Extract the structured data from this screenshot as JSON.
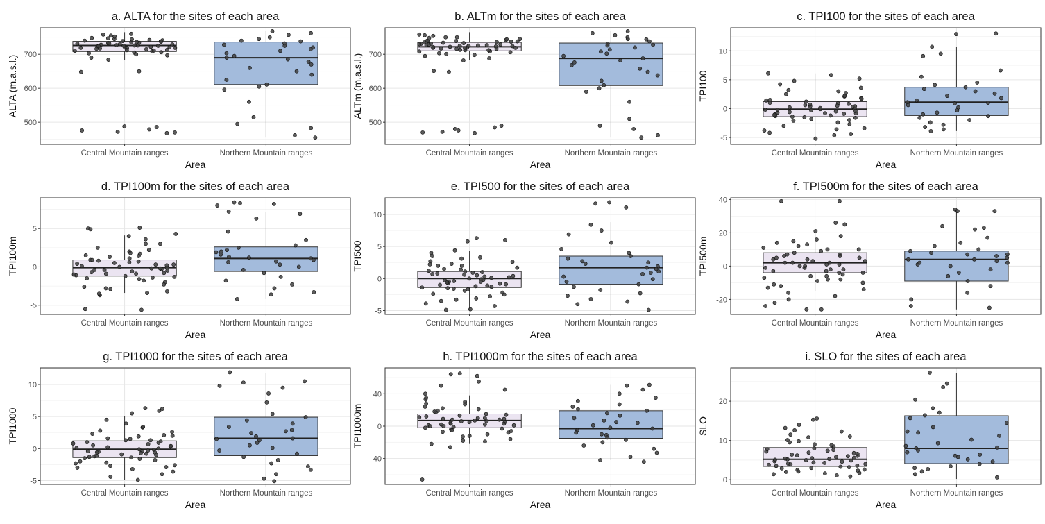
{
  "colors": {
    "central_fill": "#ebe4f1",
    "northern_fill": "#a3bbdc",
    "point": "#3f3f3f",
    "box_stroke": "#333333",
    "panel_border": "#333333",
    "grid_major": "#e6e6e6",
    "grid_minor": "#f2f2f2"
  },
  "chart_data": [
    {
      "type": "box",
      "title": "a. ALTA for the sites of each area",
      "xlabel": "Area",
      "ylabel": "ALTA (m.a.s.l.)",
      "categories": [
        "Central Mountain ranges",
        "Northern Mountain ranges"
      ],
      "yticks": [
        500,
        600,
        700
      ],
      "ylim": [
        435,
        778
      ],
      "boxes": [
        {
          "whisker_low": 683,
          "q1": 708,
          "median": 726,
          "q3": 738,
          "whisker_high": 765
        },
        {
          "whisker_low": 455,
          "q1": 611,
          "median": 690,
          "q3": 736,
          "whisker_high": 768
        }
      ],
      "points": [
        [
          748,
          742,
          735,
          730,
          728,
          725,
          722,
          720,
          718,
          712,
          710,
          705,
          700,
          745,
          738,
          733,
          727,
          723,
          719,
          715,
          741,
          737,
          731,
          726,
          721,
          716,
          709,
          703,
          697,
          690,
          684,
          760,
          755,
          752,
          744,
          740,
          734,
          729,
          724,
          717,
          711,
          706,
          650,
          648,
          488,
          486,
          479,
          476,
          472,
          470,
          468,
          739,
          732,
          725,
          719,
          713,
          758,
          747,
          736,
          726
        ],
        [
          768,
          762,
          757,
          750,
          745,
          738,
          732,
          728,
          720,
          715,
          710,
          703,
          695,
          690,
          685,
          678,
          670,
          660,
          650,
          640,
          625,
          611,
          605,
          596,
          560,
          515,
          495,
          483,
          462,
          455,
          740,
          725
        ]
      ]
    },
    {
      "type": "box",
      "title": "b. ALTm for the sites of each area",
      "xlabel": "Area",
      "ylabel": "ALTm (m.a.s.l.)",
      "categories": [
        "Central Mountain ranges",
        "Northern Mountain ranges"
      ],
      "yticks": [
        500,
        600,
        700
      ],
      "ylim": [
        435,
        778
      ],
      "boxes": [
        {
          "whisker_low": 683,
          "q1": 710,
          "median": 722,
          "q3": 735,
          "whisker_high": 765
        },
        {
          "whisker_low": 455,
          "q1": 608,
          "median": 688,
          "q3": 733,
          "whisker_high": 768
        }
      ],
      "points": [
        [
          750,
          745,
          738,
          733,
          729,
          725,
          722,
          719,
          716,
          712,
          708,
          703,
          698,
          742,
          736,
          731,
          727,
          723,
          720,
          717,
          740,
          735,
          730,
          726,
          721,
          716,
          709,
          701,
          695,
          688,
          682,
          758,
          754,
          750,
          744,
          739,
          734,
          729,
          724,
          718,
          712,
          706,
          651,
          648,
          490,
          485,
          480,
          476,
          472,
          470,
          468,
          738,
          731,
          725,
          719,
          713,
          756,
          748,
          737,
          727
        ],
        [
          768,
          762,
          756,
          750,
          744,
          738,
          731,
          726,
          720,
          714,
          708,
          702,
          695,
          688,
          682,
          676,
          668,
          658,
          648,
          638,
          622,
          609,
          600,
          590,
          560,
          510,
          490,
          480,
          462,
          455,
          745,
          728
        ]
      ]
    },
    {
      "type": "box",
      "title": "c. TPI100 for the sites of each area",
      "xlabel": "Area",
      "ylabel": "TPI100",
      "categories": [
        "Central Mountain ranges",
        "Northern Mountain ranges"
      ],
      "yticks": [
        -5,
        0,
        5,
        10
      ],
      "ylim": [
        -6.2,
        14
      ],
      "boxes": [
        {
          "whisker_low": -5.2,
          "q1": -1.4,
          "median": -0.1,
          "q3": 1.2,
          "whisker_high": 6.1
        },
        {
          "whisker_low": -3.9,
          "q1": -1.2,
          "median": 1.1,
          "q3": 3.7,
          "whisker_high": 10.7
        }
      ],
      "points": [
        [
          6.1,
          5.8,
          4.8,
          4.2,
          3.6,
          3.0,
          2.5,
          2.1,
          1.8,
          1.5,
          1.2,
          1.0,
          0.8,
          0.6,
          0.4,
          0.2,
          0.0,
          -0.1,
          -0.2,
          -0.3,
          -0.5,
          -0.7,
          -0.8,
          -1.0,
          -1.2,
          -1.4,
          -1.6,
          -1.8,
          -2.1,
          -2.4,
          -2.7,
          -3.0,
          -3.4,
          -3.8,
          -4.2,
          -4.6,
          -5.2,
          1.4,
          0.9,
          0.3,
          -0.4,
          -0.9,
          -1.3,
          2.7,
          -2.0,
          0.5,
          -0.6,
          1.7,
          -1.5,
          0.1,
          -0.8,
          3.2,
          -3.6,
          0.7,
          -0.2,
          5.2,
          -4.4,
          2.2,
          -1.1,
          0.4
        ],
        [
          13.0,
          12.9,
          10.7,
          9.5,
          9.1,
          6.6,
          5.5,
          4.1,
          3.7,
          3.4,
          3.0,
          2.6,
          2.2,
          1.8,
          1.4,
          1.1,
          0.9,
          0.6,
          0.2,
          -0.3,
          -0.7,
          -1.0,
          -1.3,
          -1.6,
          -2.0,
          -2.4,
          -2.8,
          -3.2,
          -3.6,
          -3.9,
          1.0,
          4.5
        ]
      ]
    },
    {
      "type": "box",
      "title": "d. TPI100m for the sites of each area",
      "xlabel": "Area",
      "ylabel": "TPI100m",
      "categories": [
        "Central Mountain ranges",
        "Northern Mountain ranges"
      ],
      "yticks": [
        -5,
        0,
        5
      ],
      "ylim": [
        -6.2,
        9.0
      ],
      "boxes": [
        {
          "whisker_low": -3.4,
          "q1": -1.2,
          "median": -0.1,
          "q3": 0.9,
          "whisker_high": 4.1
        },
        {
          "whisker_low": -4.2,
          "q1": -0.6,
          "median": 1.1,
          "q3": 2.6,
          "whisker_high": 7.1
        }
      ],
      "points": [
        [
          5.1,
          5.0,
          4.9,
          4.3,
          3.6,
          3.0,
          2.5,
          2.0,
          1.7,
          1.4,
          1.1,
          0.9,
          0.7,
          0.5,
          0.3,
          0.1,
          0.0,
          -0.1,
          -0.2,
          -0.4,
          -0.5,
          -0.7,
          -0.9,
          -1.1,
          -1.2,
          -1.4,
          -1.6,
          -1.8,
          -2.0,
          -2.3,
          -2.6,
          -2.9,
          -3.2,
          -3.4,
          -3.7,
          -5.5,
          -5.6,
          1.3,
          0.6,
          0.2,
          -0.3,
          -0.8,
          2.2,
          -1.5,
          0.4,
          -0.6,
          1.8,
          -1.0,
          0.8,
          -0.2,
          3.0,
          -2.8,
          0.9,
          -0.4,
          4.0,
          -3.5,
          1.5,
          -1.3,
          0.3,
          -0.9
        ],
        [
          8.4,
          8.3,
          8.2,
          8.0,
          7.2,
          6.9,
          6.3,
          4.6,
          3.5,
          2.8,
          2.5,
          2.2,
          1.9,
          1.6,
          1.3,
          1.1,
          0.9,
          0.6,
          0.3,
          0.0,
          -0.4,
          -0.8,
          -1.3,
          -1.8,
          -2.3,
          -2.8,
          -3.3,
          -3.6,
          -4.2,
          1.2,
          2.0,
          0.7
        ]
      ]
    },
    {
      "type": "box",
      "title": "e. TPI500 for the sites of each area",
      "xlabel": "Area",
      "ylabel": "TPI500",
      "categories": [
        "Central Mountain ranges",
        "Northern Mountain ranges"
      ],
      "yticks": [
        -5,
        0,
        5,
        10
      ],
      "ylim": [
        -5.6,
        12.6
      ],
      "ytick_labels": [
        "-5",
        "0",
        "5",
        "10"
      ],
      "boxes": [
        {
          "whisker_low": -4.8,
          "q1": -1.4,
          "median": 0.0,
          "q3": 1.1,
          "whisker_high": 4.3
        },
        {
          "whisker_low": -4.9,
          "q1": -0.9,
          "median": 1.7,
          "q3": 3.5,
          "whisker_high": 8.8
        }
      ],
      "points": [
        [
          6.3,
          6.0,
          5.8,
          4.4,
          4.0,
          3.5,
          3.1,
          2.7,
          2.3,
          2.0,
          1.7,
          1.4,
          1.1,
          0.9,
          0.6,
          0.4,
          0.2,
          0.0,
          -0.1,
          -0.3,
          -0.5,
          -0.7,
          -0.9,
          -1.1,
          -1.3,
          -1.5,
          -1.7,
          -1.9,
          -2.2,
          -2.5,
          -2.8,
          -3.1,
          -3.5,
          -3.9,
          -4.3,
          -4.8,
          -4.9,
          1.2,
          0.5,
          -0.4,
          -1.0,
          2.0,
          -1.6,
          0.8,
          -0.2,
          1.5,
          -1.2,
          0.3,
          -0.6,
          2.6,
          -2.4,
          0.7,
          -0.8,
          3.3,
          -3.3,
          1.0,
          -0.5,
          0.1,
          -1.4,
          2.2
        ],
        [
          11.9,
          11.7,
          11.1,
          8.4,
          7.5,
          6.9,
          5.6,
          4.6,
          4.0,
          3.5,
          3.1,
          2.7,
          2.3,
          1.9,
          1.5,
          1.1,
          0.7,
          0.3,
          -0.1,
          -0.5,
          -0.9,
          -1.3,
          -1.8,
          -2.3,
          -2.7,
          -3.2,
          -3.6,
          -4.0,
          -4.9,
          1.7,
          2.5,
          0.9
        ]
      ]
    },
    {
      "type": "box",
      "title": "f. TPI500m for the sites of each area",
      "xlabel": "Area",
      "ylabel": "TPI500m",
      "categories": [
        "Central Mountain ranges",
        "Northern Mountain ranges"
      ],
      "yticks": [
        -20,
        0,
        20,
        40
      ],
      "ylim": [
        -29,
        41
      ],
      "boxes": [
        {
          "whisker_low": -15,
          "q1": -4,
          "median": 2,
          "q3": 8,
          "whisker_high": 21
        },
        {
          "whisker_low": -26,
          "q1": -9,
          "median": 4,
          "q3": 9,
          "whisker_high": 34
        }
      ],
      "points": [
        [
          39,
          39,
          26,
          25,
          21,
          18,
          16,
          14,
          12,
          10,
          9,
          8,
          7,
          6,
          5,
          4,
          3,
          2,
          2,
          1,
          0,
          -1,
          -2,
          -3,
          -4,
          -5,
          -6,
          -7,
          -8,
          -9,
          -10,
          -11,
          -12,
          -14,
          -16,
          -18,
          -20,
          -22,
          -24,
          -26,
          -26,
          5,
          3,
          1,
          -1,
          -3,
          10,
          -6,
          6,
          0,
          11,
          -2,
          7,
          -8,
          13,
          -13,
          4,
          -4,
          15,
          2
        ],
        [
          34,
          33,
          33,
          24,
          23,
          22,
          17,
          14,
          12,
          10,
          9,
          8,
          7,
          6,
          5,
          4,
          3,
          2,
          1,
          0,
          -2,
          -4,
          -6,
          -9,
          -12,
          -16,
          -20,
          -24,
          -25,
          4,
          7,
          2
        ]
      ]
    },
    {
      "type": "box",
      "title": "g. TPI1000 for the sites of each area",
      "xlabel": "Area",
      "ylabel": "TPI1000",
      "categories": [
        "Central Mountain ranges",
        "Northern Mountain ranges"
      ],
      "yticks": [
        -5,
        0,
        5,
        10
      ],
      "ylim": [
        -5.6,
        12.6
      ],
      "boxes": [
        {
          "whisker_low": -4.9,
          "q1": -1.4,
          "median": -0.1,
          "q3": 1.2,
          "whisker_high": 5.1
        },
        {
          "whisker_low": -4.7,
          "q1": -1.1,
          "median": 1.6,
          "q3": 4.9,
          "whisker_high": 11.8
        }
      ],
      "points": [
        [
          6.3,
          6.2,
          5.9,
          5.5,
          4.5,
          3.9,
          3.3,
          2.8,
          2.3,
          1.9,
          1.6,
          1.3,
          1.0,
          0.8,
          0.5,
          0.3,
          0.1,
          -0.1,
          -0.2,
          -0.4,
          -0.6,
          -0.8,
          -1.0,
          -1.2,
          -1.4,
          -1.6,
          -1.8,
          -2.0,
          -2.3,
          -2.6,
          -2.9,
          -3.2,
          -3.6,
          -4.0,
          -4.4,
          -4.9,
          1.1,
          0.4,
          -0.3,
          -0.9,
          2.0,
          -1.5,
          0.7,
          -0.5,
          1.5,
          -1.1,
          0.2,
          -0.7,
          2.6,
          -2.2,
          0.9,
          -0.6,
          3.4,
          -3.0,
          1.3,
          -0.4,
          0.0,
          -1.3,
          2.1,
          -2.7
        ],
        [
          11.9,
          10.5,
          10.3,
          9.8,
          9.5,
          8.6,
          7.2,
          5.4,
          4.9,
          4.4,
          3.9,
          3.4,
          2.9,
          2.4,
          1.9,
          1.6,
          1.3,
          0.9,
          0.5,
          0.1,
          -0.3,
          -0.8,
          -1.3,
          -1.8,
          -2.3,
          -2.8,
          -3.3,
          -4.0,
          -4.7,
          -5.1,
          1.5,
          2.7
        ]
      ]
    },
    {
      "type": "box",
      "title": "h. TPI1000m for the sites of each area",
      "xlabel": "Area",
      "ylabel": "TPI1000m",
      "categories": [
        "Central Mountain ranges",
        "Northern Mountain ranges"
      ],
      "yticks": [
        -40,
        0,
        40
      ],
      "ylim": [
        -72,
        72
      ],
      "boxes": [
        {
          "whisker_low": -22,
          "q1": -2,
          "median": 7,
          "q3": 15,
          "whisker_high": 38
        },
        {
          "whisker_low": -42,
          "q1": -15,
          "median": -3,
          "q3": 19,
          "whisker_high": 51
        }
      ],
      "points": [
        [
          65,
          64,
          62,
          55,
          50,
          45,
          40,
          35,
          30,
          27,
          24,
          21,
          19,
          17,
          15,
          13,
          11,
          10,
          9,
          8,
          7,
          6,
          5,
          4,
          3,
          2,
          1,
          0,
          -1,
          -2,
          -4,
          -6,
          -8,
          -10,
          -13,
          -16,
          -19,
          -22,
          -26,
          -66,
          12,
          9,
          5,
          3,
          0,
          18,
          -3,
          8,
          2,
          22,
          -5,
          14,
          -7,
          28,
          -12,
          10,
          1,
          33,
          -18,
          6
        ],
        [
          51,
          50,
          45,
          40,
          35,
          31,
          27,
          24,
          21,
          19,
          16,
          13,
          10,
          7,
          4,
          1,
          -2,
          -5,
          -8,
          -11,
          -14,
          -17,
          -20,
          -24,
          -28,
          -33,
          -38,
          -42,
          -44,
          -3,
          5,
          -10
        ]
      ]
    },
    {
      "type": "box",
      "title": "i. SLO for the sites of each area",
      "xlabel": "Area",
      "ylabel": "SLO",
      "categories": [
        "Central Mountain ranges",
        "Northern Mountain ranges"
      ],
      "yticks": [
        0,
        10,
        20
      ],
      "ylim": [
        -1.2,
        28.5
      ],
      "boxes": [
        {
          "whisker_low": 0.8,
          "q1": 3.4,
          "median": 5.2,
          "q3": 8.2,
          "whisker_high": 15.3
        },
        {
          "whisker_low": 0.2,
          "q1": 4.1,
          "median": 8.0,
          "q3": 16.3,
          "whisker_high": 27.2
        }
      ],
      "points": [
        [
          15.6,
          15.3,
          14.0,
          13.2,
          12.3,
          11.5,
          10.8,
          10.1,
          9.5,
          9.0,
          8.5,
          8.0,
          7.6,
          7.2,
          6.8,
          6.4,
          6.1,
          5.8,
          5.5,
          5.2,
          5.0,
          4.7,
          4.4,
          4.1,
          3.8,
          3.5,
          3.2,
          2.9,
          2.6,
          2.3,
          2.0,
          1.7,
          1.4,
          1.1,
          0.8,
          6.6,
          5.4,
          4.6,
          3.9,
          7.4,
          3.0,
          6.0,
          4.3,
          8.8,
          2.5,
          5.6,
          4.9,
          9.8,
          3.6,
          6.9,
          5.1,
          11.0,
          2.1,
          7.8,
          4.0,
          12.6,
          1.6,
          6.2,
          3.3,
          5.3
        ],
        [
          27.3,
          24.5,
          23.6,
          20.4,
          18.2,
          17.1,
          16.4,
          15.7,
          14.5,
          13.4,
          12.3,
          11.2,
          10.2,
          9.3,
          8.6,
          8.0,
          7.5,
          7.0,
          6.4,
          5.8,
          5.2,
          4.6,
          4.0,
          3.4,
          2.7,
          2.1,
          1.4,
          0.6,
          8.2,
          6.1,
          12.0,
          3.0
        ]
      ]
    }
  ]
}
